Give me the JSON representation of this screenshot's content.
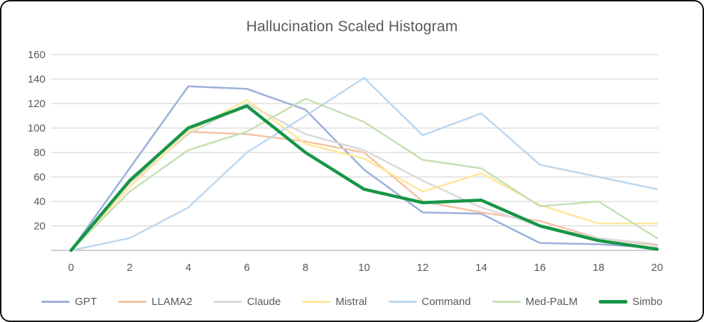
{
  "window": {
    "background": "#ffffff",
    "border_color": "#111111"
  },
  "axis_style": {
    "text_color": "#595959",
    "grid_color": "#D9D9D9",
    "baseline_color": "#BFBFBF"
  },
  "chart_data": {
    "type": "line",
    "title": "Hallucination Scaled Histogram",
    "xlabel": "",
    "ylabel": "",
    "x": [
      0,
      2,
      4,
      6,
      8,
      10,
      12,
      14,
      16,
      18,
      20
    ],
    "y_ticks": [
      160,
      140,
      120,
      100,
      80,
      60,
      40,
      20
    ],
    "ylim": [
      0,
      160
    ],
    "grid": "horizontal-only",
    "legend_position": "bottom-center",
    "series": [
      {
        "name": "GPT",
        "color": "#9BB0DC",
        "stroke_width": 2.5,
        "values": [
          0,
          67,
          134,
          132,
          115,
          66,
          31,
          30,
          6,
          5,
          2
        ]
      },
      {
        "name": "LLAMA2",
        "color": "#F5C3A3",
        "stroke_width": 2.5,
        "values": [
          0,
          52,
          97,
          95,
          89,
          80,
          40,
          31,
          24,
          10,
          4
        ]
      },
      {
        "name": "Claude",
        "color": "#D9D9D9",
        "stroke_width": 2.5,
        "values": [
          0,
          55,
          95,
          120,
          95,
          82,
          57,
          35,
          20,
          10,
          5
        ]
      },
      {
        "name": "Mistral",
        "color": "#FFE699",
        "stroke_width": 2.5,
        "values": [
          0,
          52,
          97,
          123,
          87,
          75,
          48,
          63,
          37,
          22,
          22
        ]
      },
      {
        "name": "Command",
        "color": "#BDD7EE",
        "stroke_width": 2.5,
        "values": [
          0,
          10,
          35,
          80,
          110,
          141,
          94,
          112,
          70,
          60,
          50
        ]
      },
      {
        "name": "Med-PaLM",
        "color": "#C5E0B4",
        "stroke_width": 2.5,
        "values": [
          0,
          48,
          82,
          97,
          124,
          105,
          74,
          67,
          36,
          40,
          10
        ]
      },
      {
        "name": "Simbo",
        "color": "#169647",
        "stroke_width": 4.5,
        "values": [
          0,
          57,
          100,
          118,
          80,
          50,
          39,
          41,
          20,
          8,
          1
        ]
      }
    ]
  }
}
